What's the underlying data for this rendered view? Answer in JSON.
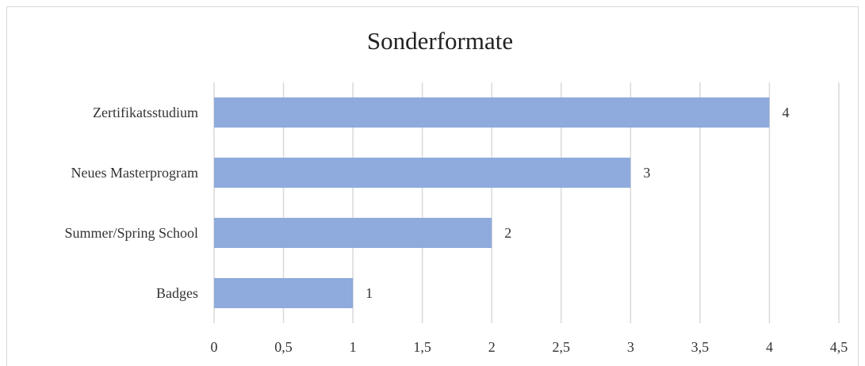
{
  "chart_data": {
    "type": "bar",
    "orientation": "horizontal",
    "title": "Sonderformate",
    "categories": [
      "Zertifikatsstudium",
      "Neues Masterprogram",
      "Summer/Spring School",
      "Badges"
    ],
    "values": [
      4,
      3,
      2,
      1
    ],
    "color": "#8faadc",
    "xlim": [
      0,
      4.5
    ],
    "xticks": [
      0,
      {
        "value": 0.5,
        "label": "0,5"
      },
      1,
      {
        "value": 1.5,
        "label": "1,5"
      },
      2,
      {
        "value": 2.5,
        "label": "2,5"
      },
      3,
      {
        "value": 3.5,
        "label": "3,5"
      },
      4,
      {
        "value": 4.5,
        "label": "4,5"
      }
    ],
    "grid": true
  }
}
